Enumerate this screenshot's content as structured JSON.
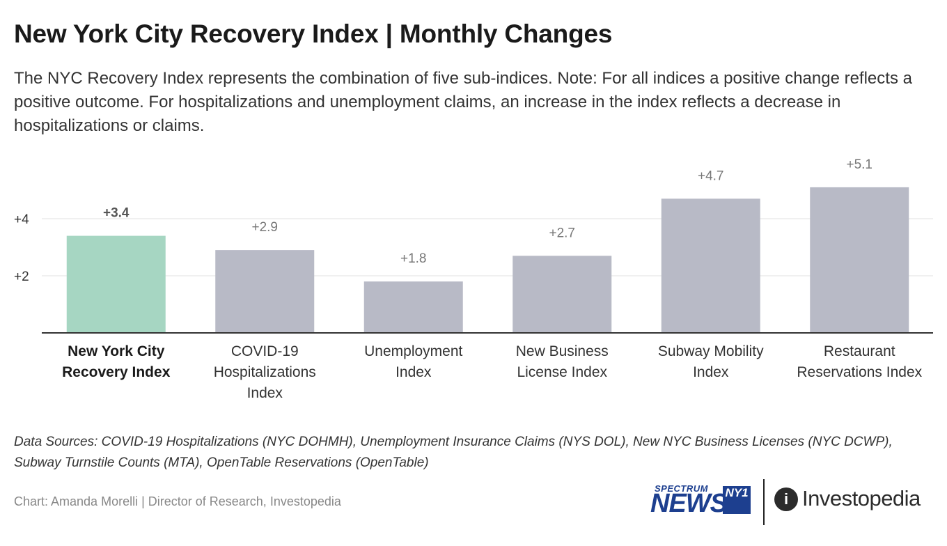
{
  "header": {
    "title": "New York City Recovery Index | Monthly Changes",
    "subtitle": "The NYC Recovery Index represents the combination of five sub-indices. Note: For all indices a positive change reflects a positive outcome. For hospitalizations and unemployment claims, an increase in the index reflects a decrease in hospitalizations or claims."
  },
  "chart_data": {
    "type": "bar",
    "categories": [
      "New York City Recovery Index",
      "COVID-19 Hospitalizations Index",
      "Unemployment Index",
      "New Business License Index",
      "Subway Mobility Index",
      "Restaurant Reservations Index"
    ],
    "category_lines": [
      [
        "New York City",
        "Recovery Index"
      ],
      [
        "COVID-19",
        "Hospitalizations",
        "Index"
      ],
      [
        "Unemployment",
        "Index"
      ],
      [
        "New Business",
        "License Index"
      ],
      [
        "Subway Mobility",
        "Index"
      ],
      [
        "Restaurant",
        "Reservations Index"
      ]
    ],
    "values": [
      3.4,
      2.9,
      1.8,
      2.7,
      4.7,
      5.1
    ],
    "data_labels": [
      "+3.4",
      "+2.9",
      "+1.8",
      "+2.7",
      "+4.7",
      "+5.1"
    ],
    "highlight_index": 0,
    "y_ticks": [
      2,
      4
    ],
    "y_tick_labels": [
      "+2",
      "+4"
    ],
    "ylim": [
      0,
      5.8
    ],
    "grid": true,
    "colors": {
      "highlight": "#a6d6c2",
      "bar": "#b8bac6",
      "grid": "#e2e2e2",
      "axis": "#333333",
      "highlight_label": "#555555",
      "label": "#777777"
    }
  },
  "footer": {
    "sources": "Data Sources: COVID-19 Hospitalizations (NYC DOHMH), Unemployment Insurance Claims (NYS DOL), New NYC Business Licenses (NYC DCWP), Subway Turnstile Counts (MTA), OpenTable Reservations (OpenTable)",
    "credit": "Chart: Amanda Morelli | Director of Research, Investopedia"
  },
  "logos": {
    "spectrum_small": "SPECTRUM",
    "news": "NEWS",
    "ny1": "NY1",
    "investopedia_mark": "i",
    "investopedia": "Investopedia"
  }
}
